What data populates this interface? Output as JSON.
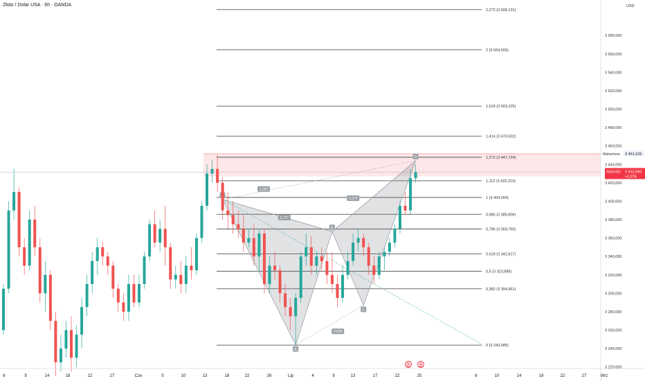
{
  "header": {
    "title": "Złoto / Dolar USA · 6h · OANDA",
    "currency": "USD"
  },
  "price_tag": {
    "symbol": "XAUUSD",
    "price": "3 431,560",
    "change": "+3,37%"
  },
  "max_tag": {
    "label": "Maksimum",
    "value": "3 451,525"
  },
  "colors": {
    "up": "#26a69a",
    "down": "#ef5350",
    "fib": "#555555",
    "pattern": "#9aa0a6",
    "tag": "#f23645"
  },
  "chart_data": {
    "type": "candlestick",
    "title": "Złoto / Dolar USA · 6h · OANDA",
    "ylim": [
      3210,
      3617
    ],
    "y_ticks": [
      "3 220,000",
      "3 240,000",
      "3 260,000",
      "3 280,000",
      "3 300,000",
      "3 320,000",
      "3 340,000",
      "3 360,000",
      "3 380,000",
      "3 400,000",
      "3 420,000",
      "3 440,000",
      "3 460,000",
      "3 480,000",
      "3 500,000",
      "3 520,000",
      "3 540,000",
      "3 560,000",
      "3 580,000"
    ],
    "y_tick_values": [
      3220,
      3240,
      3260,
      3280,
      3300,
      3320,
      3340,
      3360,
      3380,
      3400,
      3420,
      3440,
      3460,
      3480,
      3500,
      3520,
      3540,
      3560,
      3580
    ],
    "x_ticks": [
      "6",
      "9",
      "14",
      "18",
      "22",
      "27",
      "Cze",
      "5",
      "10",
      "13",
      "18",
      "22",
      "26",
      "Lip",
      "4",
      "9",
      "13",
      "17",
      "22",
      "25",
      "6",
      "10",
      "14",
      "19",
      "22",
      "27",
      "Wrz"
    ],
    "fib_levels": [
      {
        "label": "0 (3 243,685)",
        "value": 3243.685
      },
      {
        "label": "0,382 (3 304,961)",
        "value": 3304.961
      },
      {
        "label": "0,5 (3 323,889)",
        "value": 3323.889
      },
      {
        "label": "0,618 (3 342,817)",
        "value": 3342.817
      },
      {
        "label": "0,786 (3 369,766)",
        "value": 3369.766
      },
      {
        "label": "0,886 (3 385,806)",
        "value": 3385.806
      },
      {
        "label": "1 (3 404,093)",
        "value": 3404.093
      },
      {
        "label": "1,113 (3 422,219)",
        "value": 3422.219
      },
      {
        "label": "1,272 (3 447,724)",
        "value": 3447.724
      },
      {
        "label": "1,414 (3 470,502)",
        "value": 3470.502
      },
      {
        "label": "1,618 (3 503,225)",
        "value": 3503.225
      },
      {
        "label": "2 (3 564,500)",
        "value": 3564.5
      },
      {
        "label": "2,272 (3 608,131)",
        "value": 3608.131
      }
    ],
    "pattern_points": [
      {
        "label": "",
        "x": "2025-06-16",
        "y": 3402
      },
      {
        "label": "A",
        "x": "2025-06-30",
        "y": 3244
      },
      {
        "label": "B",
        "x": "2025-07-07",
        "y": 3367
      },
      {
        "label": "C",
        "x": "2025-07-13",
        "y": 3287
      },
      {
        "label": "D",
        "x": "2025-07-23",
        "y": 3444
      }
    ],
    "pattern_ratios": [
      "0,777",
      "1,252",
      "0,604",
      "1,973"
    ],
    "resistance_zone": [
      3427,
      3451.525
    ],
    "candles": [
      [
        "2025-05-05",
        3260,
        3310,
        3255,
        3305
      ],
      [
        "2025-05-06",
        3305,
        3400,
        3300,
        3390
      ],
      [
        "2025-05-07",
        3390,
        3435,
        3380,
        3410
      ],
      [
        "2025-05-08",
        3410,
        3415,
        3340,
        3350
      ],
      [
        "2025-05-09",
        3350,
        3360,
        3320,
        3330
      ],
      [
        "2025-05-10",
        3330,
        3390,
        3325,
        3380
      ],
      [
        "2025-05-11",
        3380,
        3395,
        3340,
        3350
      ],
      [
        "2025-05-12",
        3350,
        3360,
        3290,
        3300
      ],
      [
        "2025-05-13",
        3300,
        3335,
        3280,
        3320
      ],
      [
        "2025-05-14",
        3320,
        3325,
        3260,
        3270
      ],
      [
        "2025-05-15",
        3270,
        3280,
        3210,
        3225
      ],
      [
        "2025-05-16",
        3225,
        3255,
        3215,
        3240
      ],
      [
        "2025-05-17",
        3240,
        3270,
        3230,
        3260
      ],
      [
        "2025-05-18",
        3260,
        3275,
        3215,
        3230
      ],
      [
        "2025-05-19",
        3230,
        3265,
        3220,
        3255
      ],
      [
        "2025-05-20",
        3255,
        3295,
        3240,
        3285
      ],
      [
        "2025-05-21",
        3285,
        3320,
        3275,
        3310
      ],
      [
        "2025-05-22",
        3310,
        3345,
        3300,
        3335
      ],
      [
        "2025-05-23",
        3335,
        3360,
        3320,
        3350
      ],
      [
        "2025-05-24",
        3350,
        3356,
        3330,
        3340
      ],
      [
        "2025-05-25",
        3340,
        3345,
        3320,
        3330
      ],
      [
        "2025-05-26",
        3330,
        3335,
        3295,
        3305
      ],
      [
        "2025-05-27",
        3305,
        3310,
        3280,
        3290
      ],
      [
        "2025-05-28",
        3290,
        3300,
        3270,
        3280
      ],
      [
        "2025-05-29",
        3280,
        3320,
        3270,
        3310
      ],
      [
        "2025-05-30",
        3310,
        3320,
        3285,
        3290
      ],
      [
        "2025-05-31",
        3290,
        3320,
        3285,
        3310
      ],
      [
        "2025-06-01",
        3310,
        3345,
        3305,
        3340
      ],
      [
        "2025-06-02",
        3340,
        3380,
        3335,
        3375
      ],
      [
        "2025-06-03",
        3375,
        3390,
        3350,
        3355
      ],
      [
        "2025-06-04",
        3355,
        3380,
        3345,
        3370
      ],
      [
        "2025-06-05",
        3370,
        3395,
        3330,
        3350
      ],
      [
        "2025-06-06",
        3350,
        3355,
        3305,
        3315
      ],
      [
        "2025-06-07",
        3315,
        3330,
        3305,
        3320
      ],
      [
        "2025-06-08",
        3320,
        3335,
        3300,
        3310
      ],
      [
        "2025-06-09",
        3310,
        3340,
        3300,
        3330
      ],
      [
        "2025-06-10",
        3330,
        3350,
        3315,
        3325
      ],
      [
        "2025-06-11",
        3325,
        3365,
        3320,
        3360
      ],
      [
        "2025-06-12",
        3360,
        3400,
        3355,
        3395
      ],
      [
        "2025-06-13",
        3395,
        3440,
        3390,
        3430
      ],
      [
        "2025-06-14",
        3430,
        3445,
        3420,
        3435
      ],
      [
        "2025-06-15",
        3435,
        3450,
        3410,
        3420
      ],
      [
        "2025-06-16",
        3420,
        3426,
        3380,
        3390
      ],
      [
        "2025-06-17",
        3390,
        3410,
        3370,
        3385
      ],
      [
        "2025-06-18",
        3385,
        3400,
        3365,
        3375
      ],
      [
        "2025-06-19",
        3375,
        3390,
        3360,
        3370
      ],
      [
        "2025-06-20",
        3370,
        3385,
        3345,
        3355
      ],
      [
        "2025-06-21",
        3355,
        3370,
        3350,
        3360
      ],
      [
        "2025-06-22",
        3360,
        3375,
        3330,
        3340
      ],
      [
        "2025-06-23",
        3340,
        3370,
        3325,
        3365
      ],
      [
        "2025-06-24",
        3365,
        3370,
        3300,
        3310
      ],
      [
        "2025-06-25",
        3310,
        3340,
        3300,
        3330
      ],
      [
        "2025-06-26",
        3330,
        3345,
        3315,
        3325
      ],
      [
        "2025-06-27",
        3325,
        3330,
        3290,
        3300
      ],
      [
        "2025-06-28",
        3300,
        3310,
        3275,
        3285
      ],
      [
        "2025-06-29",
        3285,
        3295,
        3260,
        3275
      ],
      [
        "2025-06-30",
        3275,
        3300,
        3244,
        3295
      ],
      [
        "2025-07-01",
        3295,
        3345,
        3290,
        3340
      ],
      [
        "2025-07-02",
        3340,
        3365,
        3330,
        3350
      ],
      [
        "2025-07-03",
        3350,
        3362,
        3320,
        3330
      ],
      [
        "2025-07-04",
        3330,
        3345,
        3320,
        3340
      ],
      [
        "2025-07-05",
        3340,
        3350,
        3325,
        3335
      ],
      [
        "2025-07-06",
        3335,
        3345,
        3310,
        3320
      ],
      [
        "2025-07-07",
        3320,
        3345,
        3300,
        3310
      ],
      [
        "2025-07-08",
        3310,
        3320,
        3285,
        3295
      ],
      [
        "2025-07-09",
        3295,
        3330,
        3290,
        3320
      ],
      [
        "2025-07-10",
        3320,
        3345,
        3315,
        3335
      ],
      [
        "2025-07-11",
        3335,
        3365,
        3330,
        3355
      ],
      [
        "2025-07-12",
        3355,
        3370,
        3345,
        3360
      ],
      [
        "2025-07-13",
        3360,
        3365,
        3340,
        3350
      ],
      [
        "2025-07-14",
        3350,
        3355,
        3320,
        3330
      ],
      [
        "2025-07-15",
        3330,
        3340,
        3310,
        3320
      ],
      [
        "2025-07-16",
        3320,
        3345,
        3315,
        3340
      ],
      [
        "2025-07-17",
        3340,
        3350,
        3325,
        3345
      ],
      [
        "2025-07-18",
        3345,
        3360,
        3340,
        3355
      ],
      [
        "2025-07-19",
        3355,
        3375,
        3350,
        3370
      ],
      [
        "2025-07-20",
        3370,
        3400,
        3365,
        3395
      ],
      [
        "2025-07-21",
        3395,
        3410,
        3385,
        3390
      ],
      [
        "2025-07-22",
        3390,
        3435,
        3385,
        3425
      ],
      [
        "2025-07-23",
        3425,
        3440,
        3420,
        3431.56
      ]
    ]
  }
}
